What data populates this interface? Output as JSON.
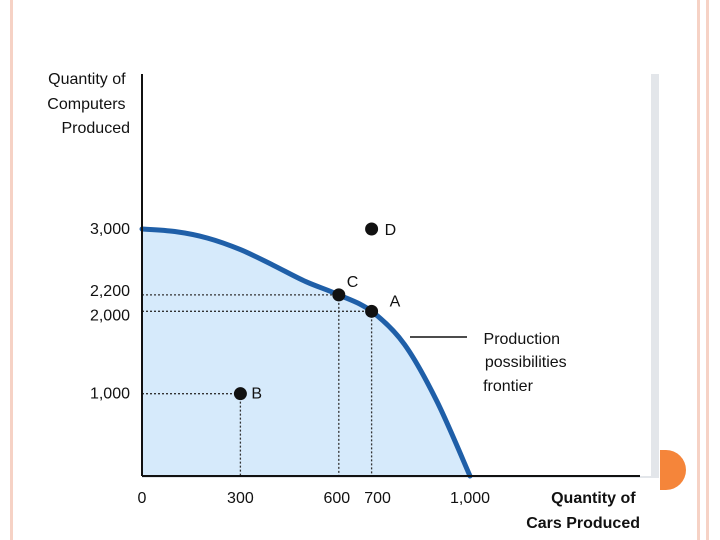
{
  "theme": {
    "border_stripe": "#f6d2c5",
    "accent_orange": "#f5853a",
    "curve_color": "#1f5fa8",
    "fill_color": "#d6eafb",
    "panel_shadow": "#e3e6ea"
  },
  "chart_data": {
    "type": "line",
    "title": "",
    "ylabel": [
      "Quantity of",
      "Computers",
      "Produced"
    ],
    "xlabel": [
      "Quantity of",
      "Cars Produced"
    ],
    "xlim": [
      0,
      1150
    ],
    "ylim": [
      0,
      3700
    ],
    "x_ticks": [
      {
        "value": 0,
        "label": "0"
      },
      {
        "value": 300,
        "label": "300"
      },
      {
        "value": 600,
        "label": "600"
      },
      {
        "value": 700,
        "label": "700"
      },
      {
        "value": 1000,
        "label": "1,000"
      }
    ],
    "y_ticks": [
      {
        "value": 1000,
        "label": "1,000"
      },
      {
        "value": 2000,
        "label": "2,000"
      },
      {
        "value": 2200,
        "label": "2,200"
      },
      {
        "value": 3000,
        "label": "3,000"
      }
    ],
    "series": [
      {
        "x": [
          0,
          100,
          200,
          300,
          400,
          500,
          600,
          700,
          800,
          900,
          1000
        ],
        "y": [
          3000,
          2970,
          2890,
          2750,
          2560,
          2360,
          2200,
          2000,
          1600,
          900,
          0
        ]
      }
    ],
    "points": [
      {
        "label": "A",
        "x": 700,
        "y": 2000
      },
      {
        "label": "B",
        "x": 300,
        "y": 1000
      },
      {
        "label": "C",
        "x": 600,
        "y": 2200
      },
      {
        "label": "D",
        "x": 700,
        "y": 3000
      }
    ],
    "guides": [
      {
        "x": 600,
        "y": 2200
      },
      {
        "x": 700,
        "y": 2000
      },
      {
        "x": 300,
        "y": 1000
      }
    ],
    "annotation": {
      "text": [
        "Production",
        "possibilities",
        "frontier"
      ]
    }
  }
}
